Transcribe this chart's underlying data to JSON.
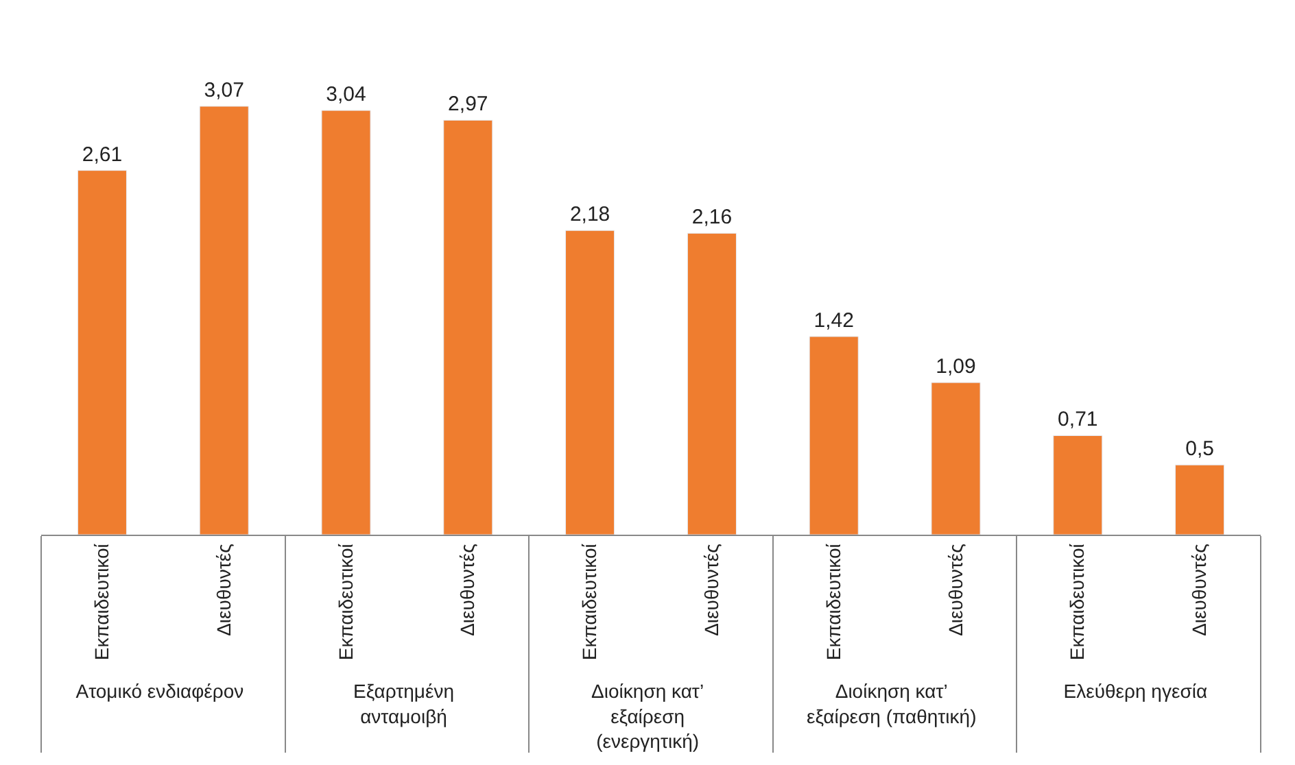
{
  "chart_data": {
    "type": "bar",
    "categories": [
      "Εκπαιδευτικοί",
      "Διευθυντές",
      "Εκπαιδευτικοί",
      "Διευθυντές",
      "Εκπαιδευτικοί",
      "Διευθυντές",
      "Εκπαιδευτικοί",
      "Διευθυντές",
      "Εκπαιδευτικοί",
      "Διευθυντές"
    ],
    "values": [
      2.61,
      3.07,
      3.04,
      2.97,
      2.18,
      2.16,
      1.42,
      1.09,
      0.71,
      0.5
    ],
    "value_labels": [
      "2,61",
      "3,07",
      "3,04",
      "2,97",
      "2,18",
      "2,16",
      "1,42",
      "1,09",
      "0,71",
      "0,5"
    ],
    "color": "#ef7d2f",
    "annotations": [
      "Ατομικό ενδιαφέρον",
      "Εξαρτημένη ανταμοιβή",
      "Διοίκηση κατ’ εξαίρεση (ενεργητική)",
      "Διοίκηση κατ’ εξαίρεση (παθητική)",
      "Ελεύθερη ηγεσία"
    ]
  }
}
